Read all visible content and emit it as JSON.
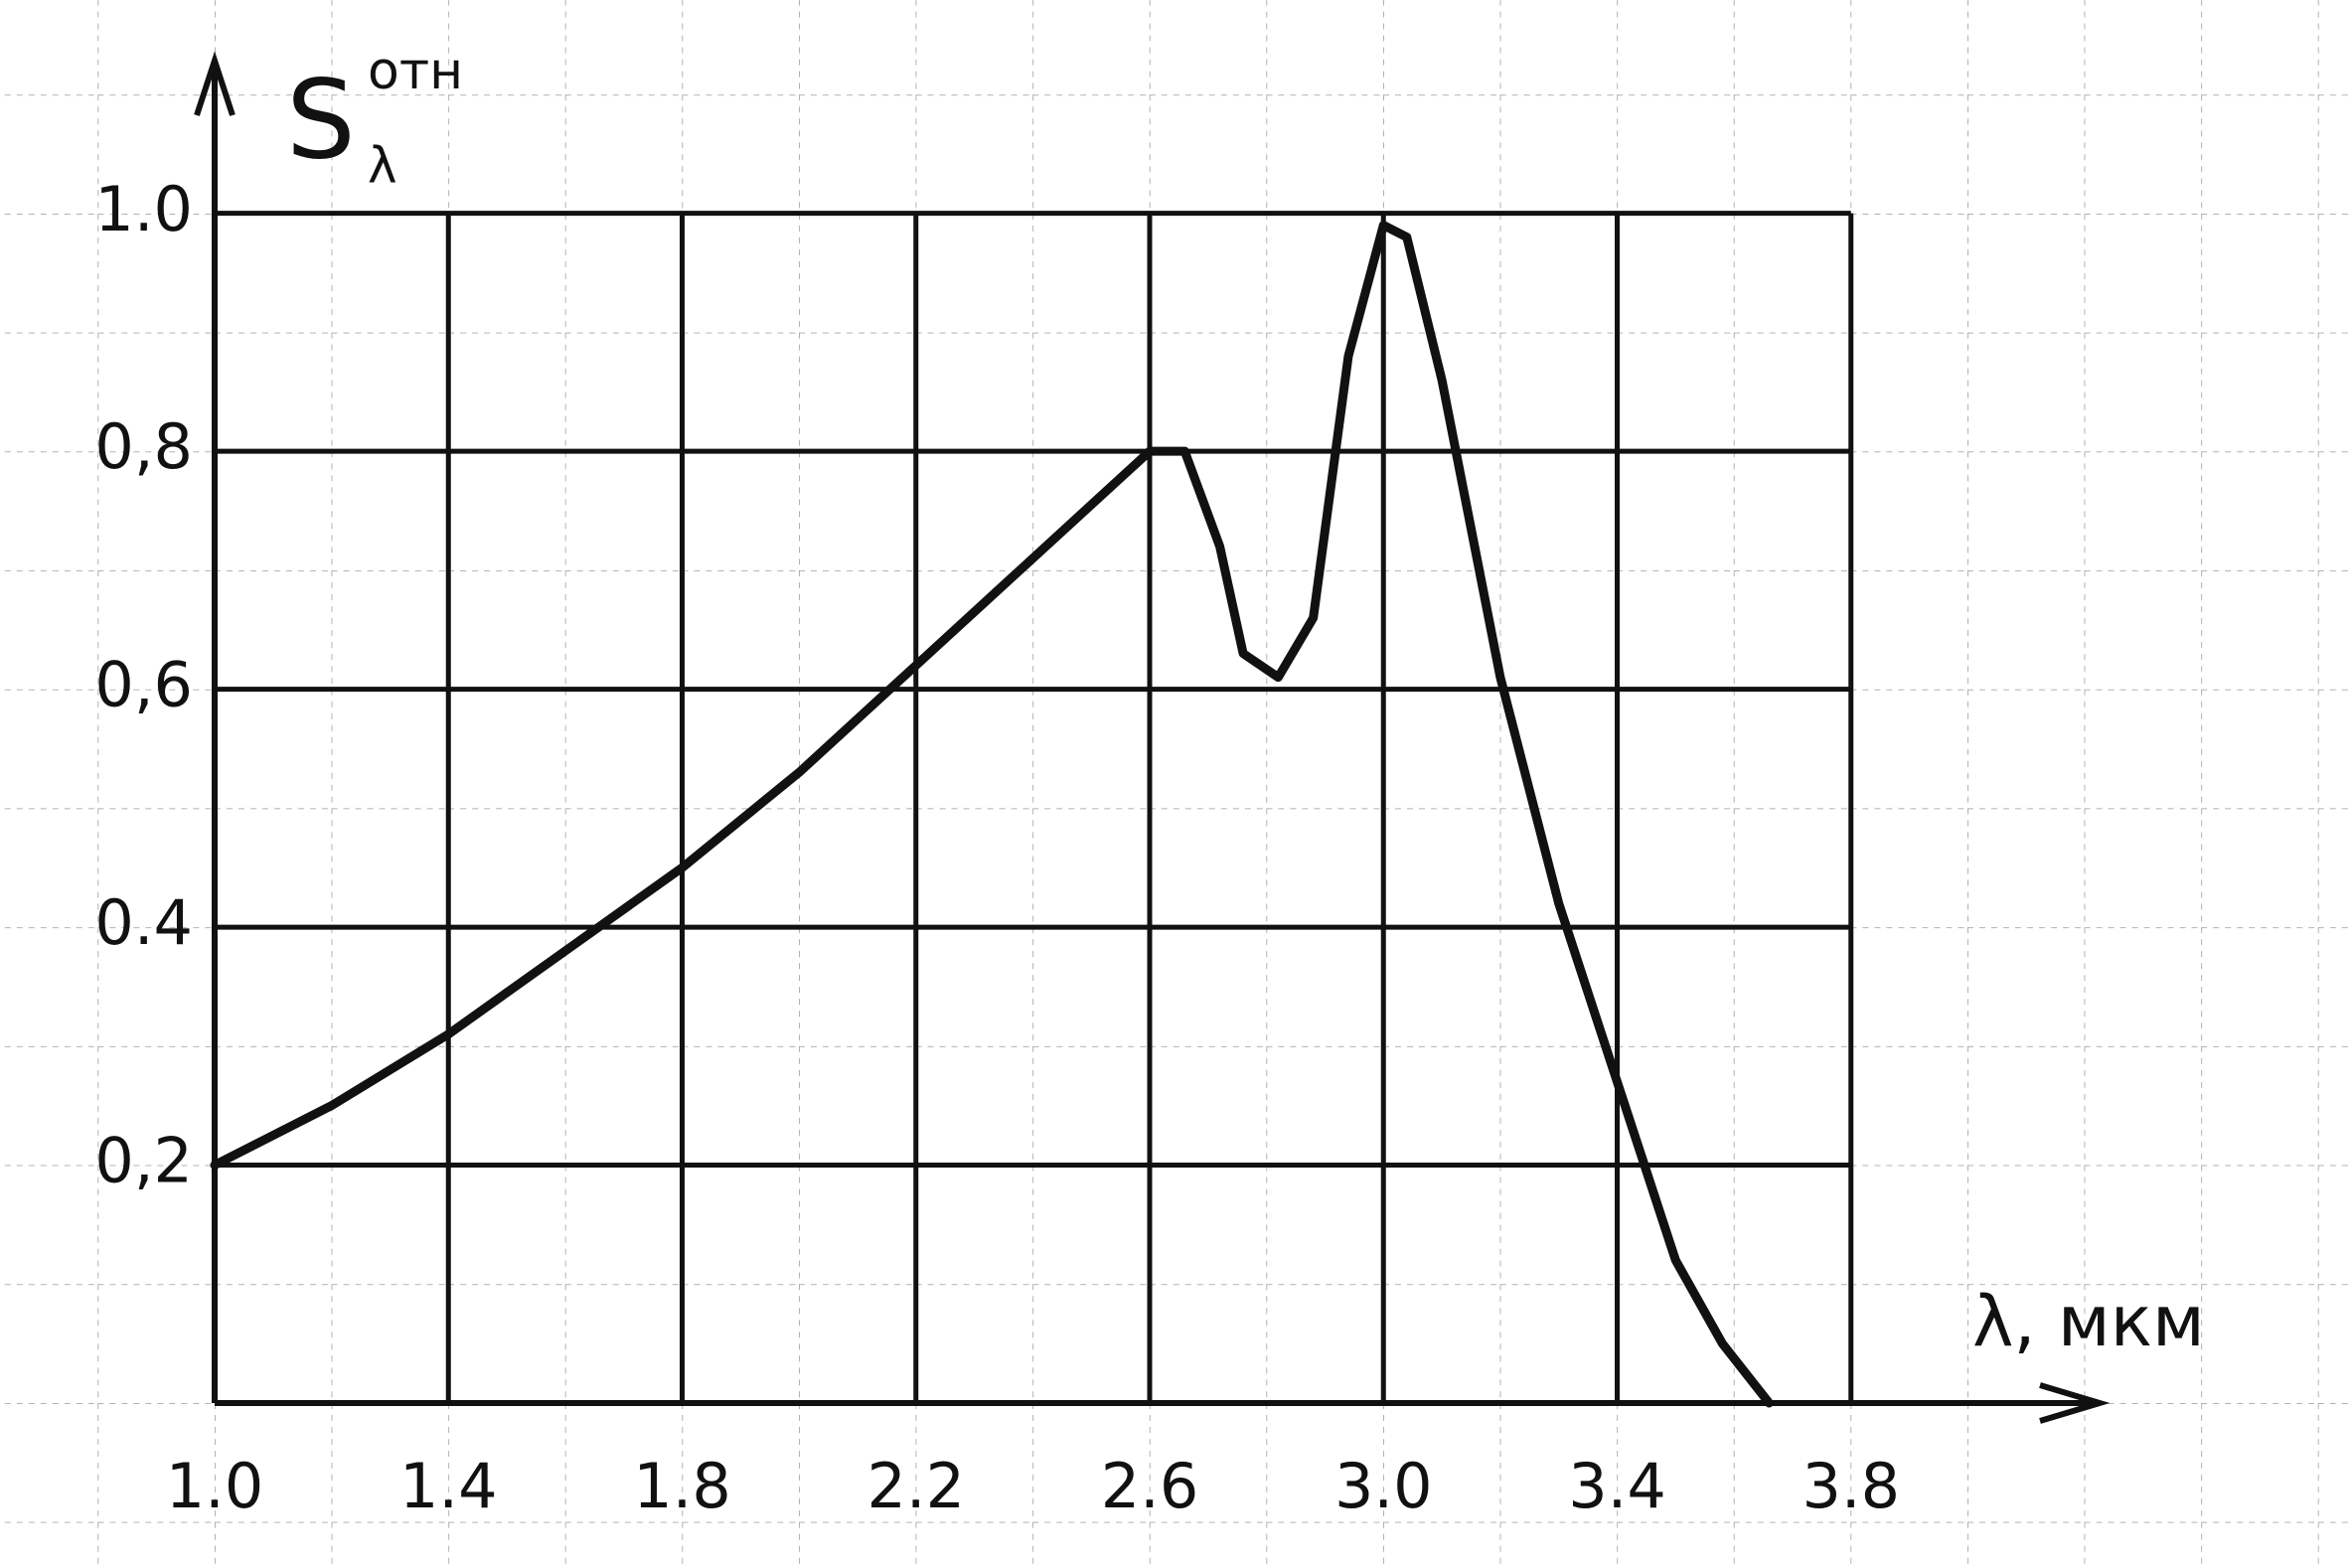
{
  "chart_data": {
    "type": "line",
    "y_label": {
      "symbol": "S",
      "subscript": "λ",
      "superscript": "отн"
    },
    "x_label": "λ, мкм",
    "x": [
      1.0,
      1.2,
      1.4,
      1.6,
      1.8,
      2.0,
      2.2,
      2.4,
      2.6,
      2.66,
      2.72,
      2.76,
      2.82,
      2.88,
      2.94,
      3.0,
      3.04,
      3.1,
      3.2,
      3.3,
      3.4,
      3.5,
      3.58,
      3.66
    ],
    "series": [
      {
        "color": "#111111",
        "values": [
          0.2,
          0.25,
          0.31,
          0.38,
          0.45,
          0.53,
          0.62,
          0.71,
          0.8,
          0.8,
          0.72,
          0.63,
          0.61,
          0.66,
          0.88,
          0.99,
          0.98,
          0.86,
          0.61,
          0.42,
          0.27,
          0.12,
          0.05,
          0.0
        ]
      }
    ],
    "xlim": [
      1.0,
      4.2
    ],
    "ylim": [
      0,
      1.12
    ],
    "xticks": [
      {
        "value": 1,
        "label": "1.0"
      },
      1.4,
      1.8,
      2.2,
      2.6,
      {
        "value": 3,
        "label": "3.0"
      },
      3.4,
      3.8
    ],
    "yticks": [
      {
        "value": 0.2,
        "label": "0,2"
      },
      {
        "value": 0.4,
        "label": "0.4"
      },
      {
        "value": 0.6,
        "label": "0,6"
      },
      {
        "value": 0.8,
        "label": "0,8"
      },
      {
        "value": 1,
        "label": "1.0"
      }
    ],
    "grid": true
  }
}
